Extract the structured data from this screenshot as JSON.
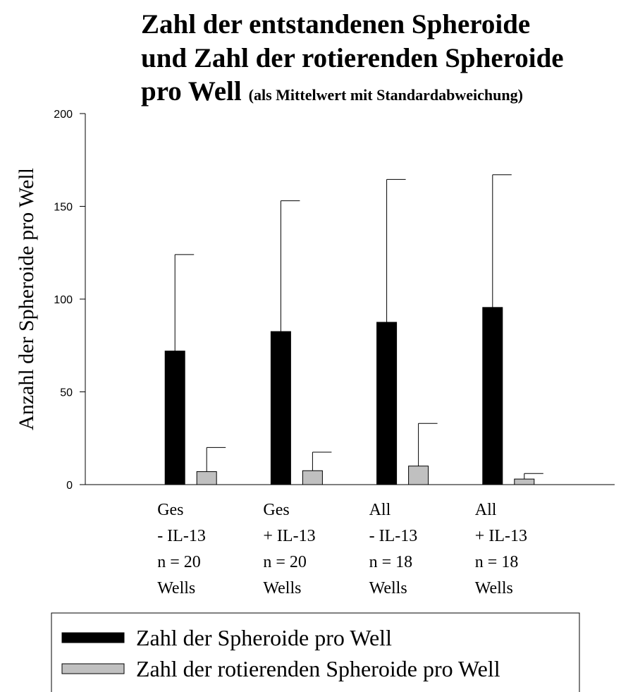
{
  "chart_data": {
    "type": "bar",
    "title": [
      "Zahl der entstandenen Spheroide",
      "und Zahl der rotierenden Spheroide",
      "pro Well"
    ],
    "subtitle": "(als Mittelwert mit Standardabweichung)",
    "y_label": "Anzahl der Spheroide pro Well",
    "categories": [
      [
        "Ges",
        "- IL-13",
        "n = 20",
        "Wells"
      ],
      [
        "Ges",
        "+ IL-13",
        "n = 20",
        "Wells"
      ],
      [
        "All",
        "- IL-13",
        "n = 18",
        "Wells"
      ],
      [
        "All",
        "+ IL-13",
        "n = 18",
        "Wells"
      ]
    ],
    "series": [
      {
        "name": "Zahl der Spheroide pro Well",
        "color": "#000000",
        "values": [
          72,
          82.5,
          87.5,
          95.5
        ],
        "errors": [
          52,
          70.5,
          77,
          71.5
        ]
      },
      {
        "name": "Zahl der rotierenden Spheroide pro Well",
        "color": "#c0c0c0",
        "values": [
          7,
          7.5,
          10,
          3
        ],
        "errors": [
          13,
          10,
          23,
          3
        ]
      }
    ],
    "ylim": [
      0,
      200
    ],
    "yticks": [
      0,
      50,
      100,
      150,
      200
    ],
    "grid": false
  }
}
